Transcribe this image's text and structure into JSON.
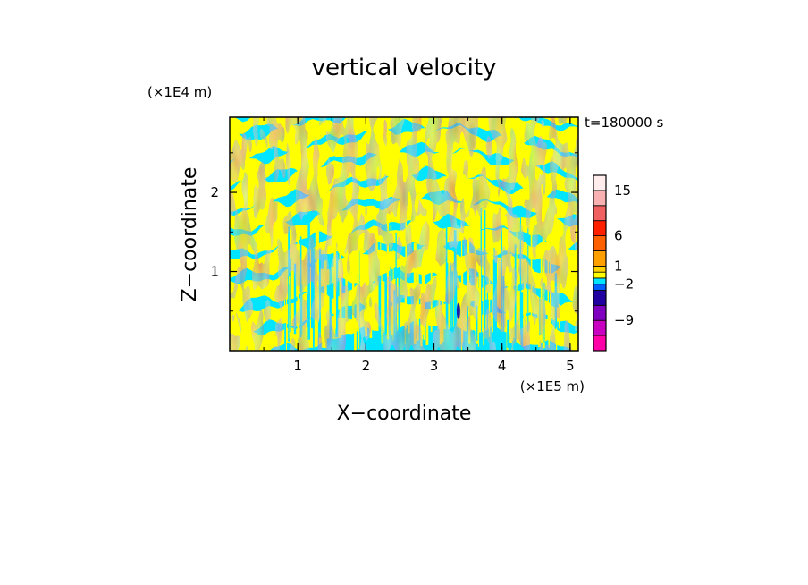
{
  "chart_data": {
    "type": "heatmap",
    "title": "vertical velocity",
    "xlabel": "X−coordinate",
    "ylabel": "Z−coordinate",
    "x_unit": "(×1E5 m)",
    "y_unit": "(×1E4 m)",
    "time_label": "t=180000 s",
    "xlim": [
      0,
      5.12
    ],
    "ylim": [
      0,
      2.95
    ],
    "x_ticks": [
      {
        "value": 1,
        "label": "1"
      },
      {
        "value": 2,
        "label": "2"
      },
      {
        "value": 3,
        "label": "3"
      },
      {
        "value": 4,
        "label": "4"
      },
      {
        "value": 5,
        "label": "5"
      }
    ],
    "y_ticks": [
      {
        "value": 1,
        "label": "1"
      },
      {
        "value": 2,
        "label": "2"
      }
    ],
    "colors": {
      "positive": "#ffff00",
      "negative": "#00e5ff",
      "updraft_core": "#1a1aa8"
    },
    "colorbar": {
      "ticks": [
        {
          "value": 15,
          "label": "15"
        },
        {
          "value": 6,
          "label": "6"
        },
        {
          "value": 1,
          "label": "1"
        },
        {
          "value": -2,
          "label": "−2"
        },
        {
          "value": -9,
          "label": "−9"
        }
      ],
      "bins": [
        {
          "color": "#ff00a8"
        },
        {
          "color": "#c800c0"
        },
        {
          "color": "#8000c0"
        },
        {
          "color": "#2000a0"
        },
        {
          "color": "#0060ff"
        },
        {
          "color": "#00e5ff"
        },
        {
          "color": "#ffff00"
        },
        {
          "color": "#ffd200"
        },
        {
          "color": "#ffa000"
        },
        {
          "color": "#ff6000"
        },
        {
          "color": "#ff2000"
        },
        {
          "color": "#f06060"
        },
        {
          "color": "#f8b0b0"
        },
        {
          "color": "#ffecec"
        }
      ]
    }
  }
}
